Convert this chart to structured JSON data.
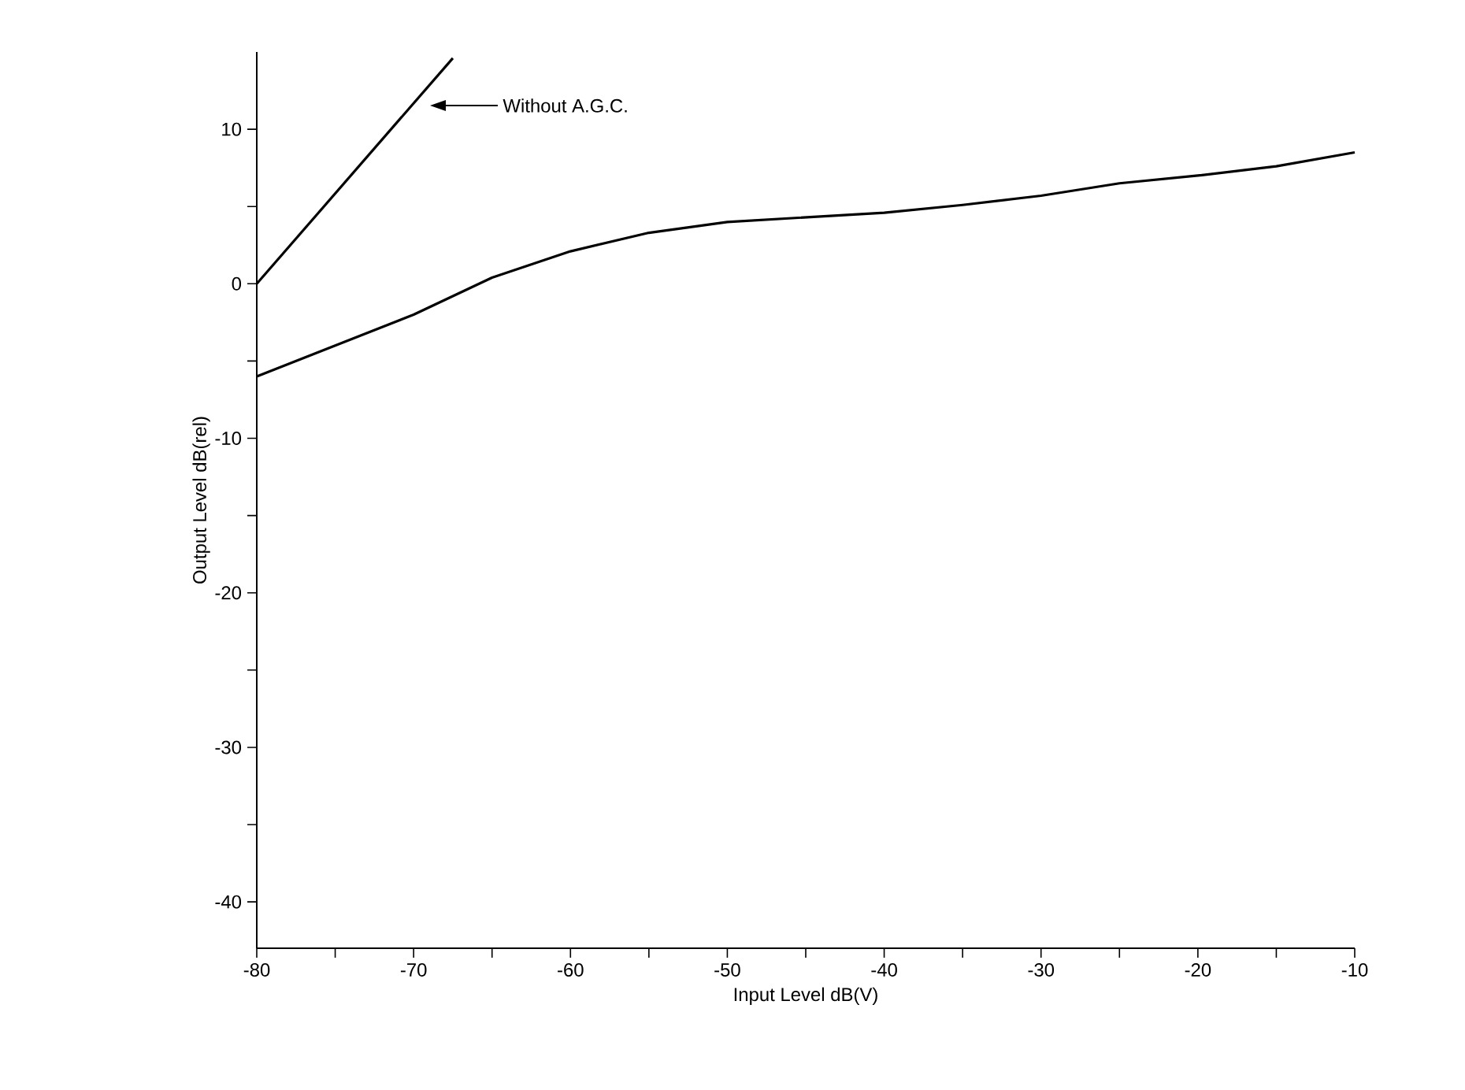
{
  "chart_data": {
    "type": "line",
    "xlabel": "Input Level dB(V)",
    "ylabel": "Output Level dB(rel)",
    "xlim": [
      -80,
      -10
    ],
    "ylim": [
      -43,
      15
    ],
    "xticks": [
      -80,
      {
        "value": -75,
        "label": null
      },
      -70,
      {
        "value": -65,
        "label": null
      },
      -60,
      {
        "value": -55,
        "label": null
      },
      -50,
      {
        "value": -45,
        "label": null
      },
      -40,
      {
        "value": -35,
        "label": null
      },
      -30,
      {
        "value": -25,
        "label": null
      },
      -20,
      {
        "value": -15,
        "label": null
      },
      -10
    ],
    "yticks": [
      -40,
      {
        "value": -35,
        "label": null
      },
      -30,
      {
        "value": -25,
        "label": null
      },
      -20,
      {
        "value": -15,
        "label": null
      },
      -10,
      {
        "value": -5,
        "label": null
      },
      0,
      {
        "value": 5,
        "label": null
      },
      10
    ],
    "grid": false,
    "marker": "none",
    "line_style": "solid",
    "annotations": [
      "Without A.G.C."
    ],
    "series": [
      {
        "color": "#000000",
        "x": [
          -80,
          -67.5
        ],
        "values": [
          0,
          14.6
        ]
      },
      {
        "color": "#000000",
        "x": [
          -80,
          -75,
          -70,
          -65,
          -60,
          -55,
          -50,
          -45,
          -40,
          -35,
          -30,
          -25,
          -20,
          -15,
          -10
        ],
        "values": [
          -6,
          -4,
          -2,
          0.4,
          2.1,
          3.3,
          4.0,
          4.3,
          4.6,
          5.1,
          5.7,
          6.5,
          7.0,
          7.6,
          8.5
        ]
      }
    ]
  }
}
